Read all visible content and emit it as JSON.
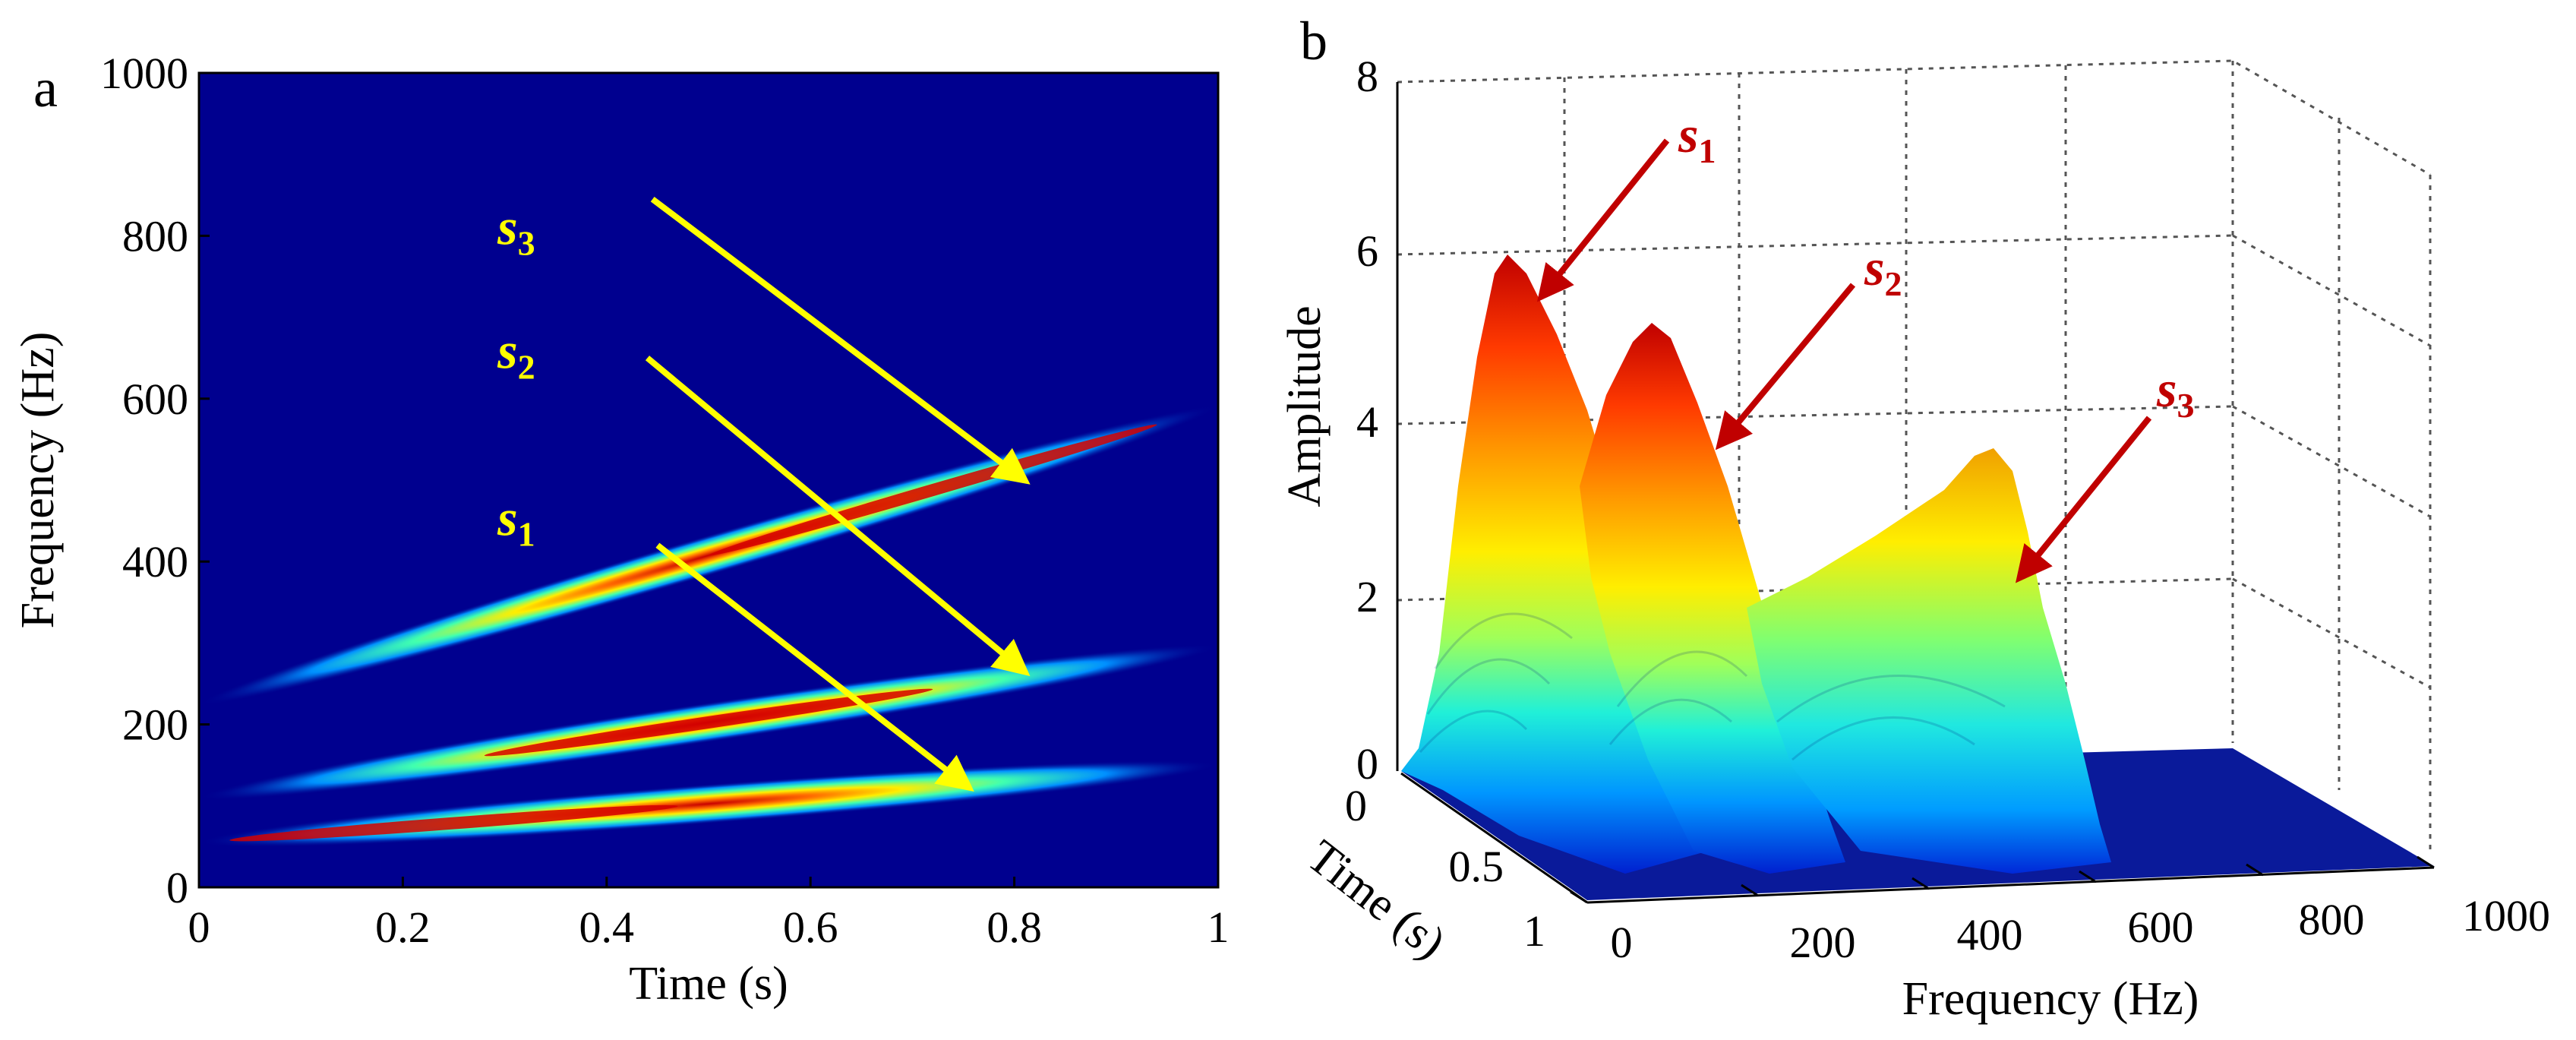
{
  "panels": {
    "left_label": "a",
    "right_label": "b"
  },
  "colors": {
    "background_blue": "#00008f",
    "arrow_yellow": "#ffff00",
    "arrow_red": "#c00000",
    "label_yellow": "#ffff00",
    "label_red": "#c00000",
    "grid": "#555555"
  },
  "chart_data": [
    {
      "type": "heatmap",
      "title": "",
      "xlabel": "Time (s)",
      "ylabel": "Frequency (Hz)",
      "xlim": [
        0,
        1
      ],
      "ylim": [
        0,
        1000
      ],
      "xticks": [
        0,
        0.2,
        0.4,
        0.6,
        0.8,
        1
      ],
      "xtick_labels": [
        "0",
        "0.2",
        "0.4",
        "0.6",
        "0.8",
        "1"
      ],
      "yticks": [
        0,
        200,
        400,
        600,
        800,
        1000
      ],
      "ytick_labels": [
        "0",
        "200",
        "400",
        "600",
        "800",
        "1000"
      ],
      "series": [
        {
          "name": "s3",
          "label_base": "s",
          "label_sub": "3",
          "x": [
            0,
            1
          ],
          "y": [
            225,
            590
          ],
          "peak_x": 0.72
        },
        {
          "name": "s2",
          "label_base": "s",
          "label_sub": "2",
          "x": [
            0,
            1
          ],
          "y": [
            110,
            295
          ],
          "peak_x": 0.5
        },
        {
          "name": "s1",
          "label_base": "s",
          "label_sub": "1",
          "x": [
            0,
            1
          ],
          "y": [
            55,
            150
          ],
          "peak_x": 0.25
        }
      ]
    },
    {
      "type": "surface3d",
      "title": "",
      "xlabel": "Frequency (Hz)",
      "ylabel": "Time (s)",
      "zlabel": "Amplitude",
      "xlim": [
        0,
        1000
      ],
      "ylim": [
        0,
        1
      ],
      "zlim": [
        0,
        8
      ],
      "xtick_labels": [
        "0",
        "200",
        "400",
        "600",
        "800",
        "1000"
      ],
      "ytick_labels": [
        "0",
        "0.5",
        "1"
      ],
      "ztick_labels": [
        "0",
        "2",
        "4",
        "6",
        "8"
      ],
      "series": [
        {
          "name": "s1",
          "label_base": "s",
          "label_sub": "1",
          "peak_amplitude": 5.9
        },
        {
          "name": "s2",
          "label_base": "s",
          "label_sub": "2",
          "peak_amplitude": 5.1
        },
        {
          "name": "s3",
          "label_base": "s",
          "label_sub": "3",
          "peak_amplitude": 3.7
        }
      ]
    }
  ]
}
